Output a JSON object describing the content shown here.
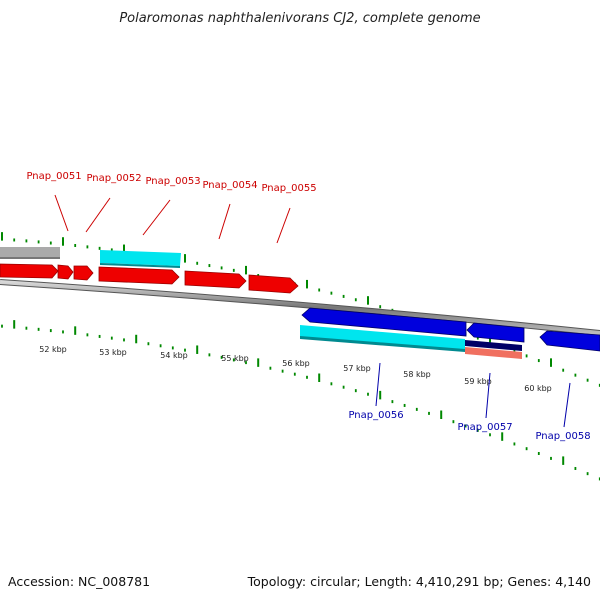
{
  "title": "Polaromonas naphthalenivorans CJ2, complete genome",
  "accession": "Accession: NC_008781",
  "summary": "Topology: circular; Length: 4,410,291 bp; Genes: 4,140",
  "colors": {
    "forward_gene": "#ee0000",
    "reverse_gene": "#0000dd",
    "forward_cds": "#a8a8a8",
    "reverse_cds": "#00e5ee",
    "rna": "#f07060",
    "dark": "#000066",
    "tick": "#008800",
    "backbone": "#888888",
    "label_forward": "#cc0000",
    "label_reverse": "#0000aa"
  },
  "kbp_labels": [
    "52 kbp",
    "53 kbp",
    "54 kbp",
    "55 kbp",
    "56 kbp",
    "57 kbp",
    "58 kbp",
    "59 kbp",
    "60 kbp"
  ],
  "forward_genes": [
    "Pnap_0051",
    "Pnap_0052",
    "Pnap_0053",
    "Pnap_0054",
    "Pnap_0055"
  ],
  "reverse_genes": [
    "Pnap_0056",
    "Pnap_0057",
    "Pnap_0058"
  ]
}
